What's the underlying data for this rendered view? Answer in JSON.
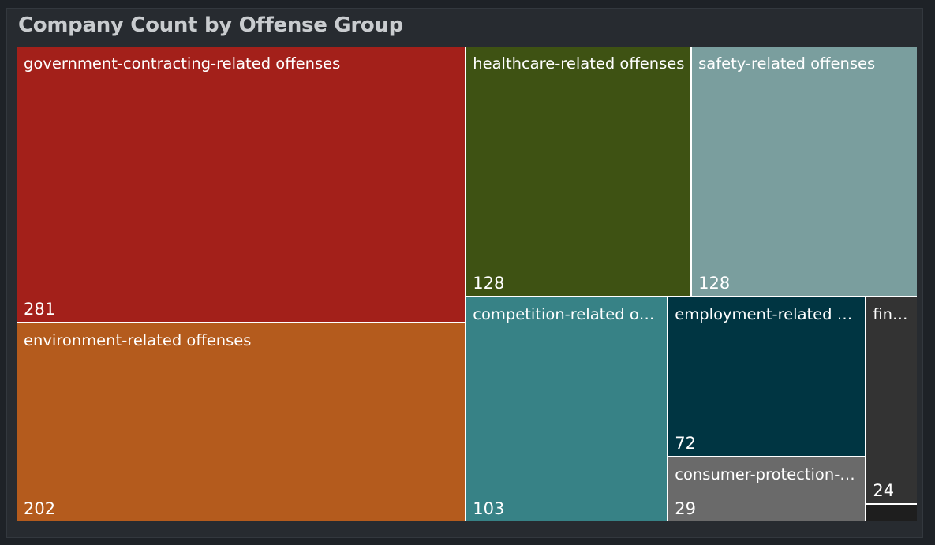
{
  "header": {
    "title": "Company Count by Offense Group"
  },
  "chart_data": {
    "type": "treemap",
    "title": "Company Count by Offense Group",
    "items": [
      {
        "label": "government-contracting-related offenses",
        "value": 281,
        "value_label": "281",
        "color": "#a3201a"
      },
      {
        "label": "environment-related offenses",
        "value": 202,
        "value_label": "202",
        "color": "#b45b1d"
      },
      {
        "label": "healthcare-related offenses",
        "value": 128,
        "value_label": "128",
        "color": "#3e5213"
      },
      {
        "label": "safety-related offenses",
        "value": 128,
        "value_label": "128",
        "color": "#7a9e9e"
      },
      {
        "label": "competition-related offenses",
        "value": 103,
        "value_label": "103",
        "color": "#378286"
      },
      {
        "label": "employment-related offenses",
        "value": 72,
        "value_label": "72",
        "color": "#003542"
      },
      {
        "label": "consumer-protection-related offenses",
        "value": 29,
        "value_label": "29",
        "color": "#6a6a6a"
      },
      {
        "label": "financial offenses",
        "value": 24,
        "value_label": "24",
        "color": "#333333"
      },
      {
        "label": "",
        "value": 2,
        "value_label": "",
        "color": "#1e1e1e"
      }
    ]
  }
}
